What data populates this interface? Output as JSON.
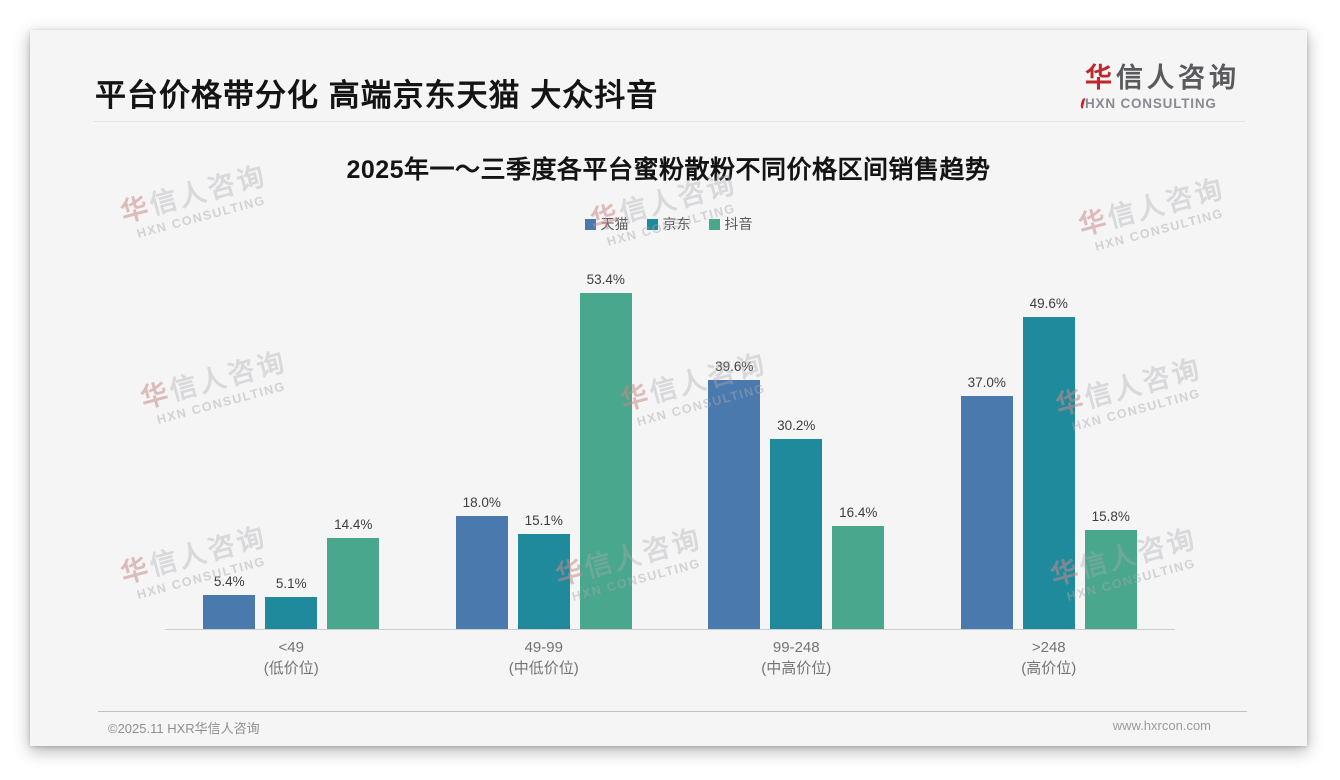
{
  "header": {
    "title": "平台价格带分化 高端京东天猫 大众抖音"
  },
  "logo": {
    "first_char": "华",
    "rest_chars": "信人咨询",
    "subtitle": "HXN CONSULTING"
  },
  "watermark": {
    "first_char": "华",
    "rest_chars": "信人咨询",
    "line2": "HXN CONSULTING"
  },
  "chart_data": {
    "type": "bar",
    "title": "2025年一～三季度各平台蜜粉散粉不同价格区间销售趋势",
    "categories": [
      "<49",
      "49-99",
      "99-248",
      ">248"
    ],
    "category_sublabels": [
      "(低价位)",
      "(中低价位)",
      "(中高价位)",
      "(高价位)"
    ],
    "series": [
      {
        "key": "tmall",
        "name": "天猫",
        "color": "#4a79ad",
        "values": [
          5.4,
          18.0,
          39.6,
          37.0
        ]
      },
      {
        "key": "jd",
        "name": "京东",
        "color": "#1f8a9b",
        "values": [
          5.1,
          15.1,
          30.2,
          49.6
        ]
      },
      {
        "key": "douyin",
        "name": "抖音",
        "color": "#48a78c",
        "values": [
          14.4,
          53.4,
          16.4,
          15.8
        ]
      }
    ],
    "value_suffix": "%",
    "ylim": [
      0,
      56
    ],
    "grid": false,
    "legend_position": "top",
    "value_labels": true
  },
  "footer": {
    "copyright": "©2025.11 HXR华信人咨询",
    "website": "www.hxrcon.com"
  }
}
